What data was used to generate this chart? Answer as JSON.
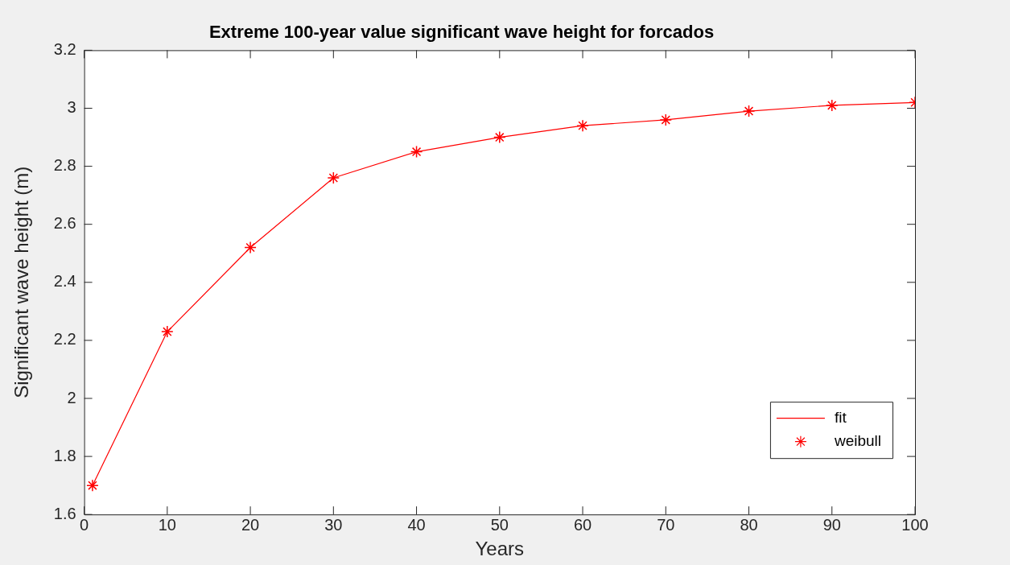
{
  "chart_data": {
    "type": "line",
    "title": "Extreme 100-year value significant wave height for forcados",
    "xlabel": "Years",
    "ylabel": "Significant wave height (m)",
    "x": [
      1,
      10,
      20,
      30,
      40,
      50,
      60,
      70,
      80,
      90,
      100
    ],
    "series": [
      {
        "name": "fit",
        "color": "#ff0000",
        "marker": "none",
        "line_style": "solid",
        "values": [
          1.7,
          2.23,
          2.52,
          2.76,
          2.85,
          2.9,
          2.94,
          2.96,
          2.99,
          3.01,
          3.02
        ]
      },
      {
        "name": "weibull",
        "type": "scatter",
        "color": "#ff0000",
        "marker": "cross",
        "values": [
          1.7,
          2.23,
          2.52,
          2.76,
          2.85,
          2.9,
          2.94,
          2.96,
          2.99,
          3.01,
          3.02
        ]
      }
    ],
    "xlim": [
      0,
      100
    ],
    "xticks": [
      0,
      10,
      20,
      30,
      40,
      50,
      60,
      70,
      80,
      90,
      100
    ],
    "ylim": [
      1.6,
      3.2
    ],
    "yticks": [
      1.6,
      1.8,
      2,
      2.2,
      2.4,
      2.6,
      2.8,
      3,
      3.2
    ],
    "grid": false,
    "legend": "bottom right"
  }
}
